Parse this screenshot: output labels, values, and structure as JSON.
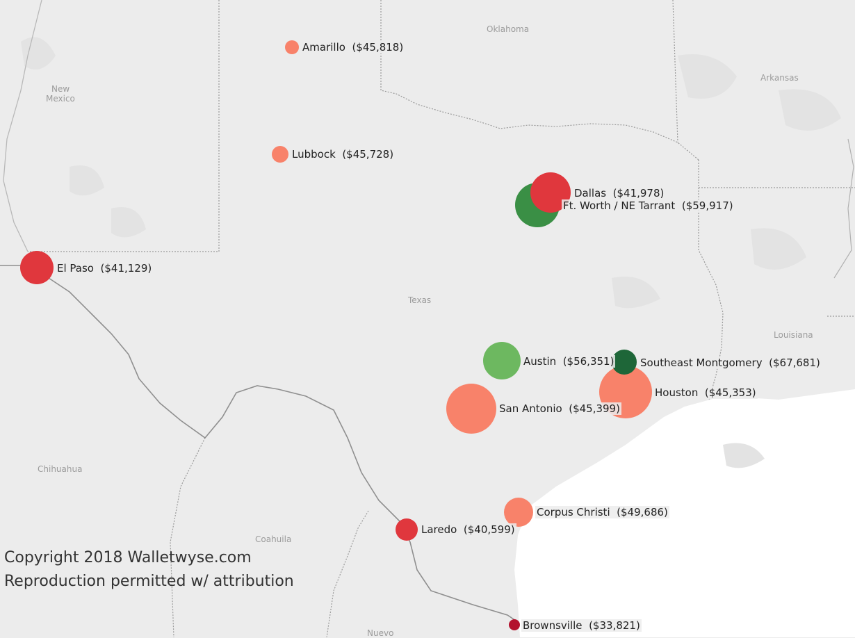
{
  "map": {
    "regions": {
      "oklahoma": "Oklahoma",
      "new_mexico_1": "New",
      "new_mexico_2": "Mexico",
      "arkansas": "Arkansas",
      "texas": "Texas",
      "louisiana": "Louisiana",
      "chihuahua": "Chihuahua",
      "coahuila": "Coahuila",
      "nuevo": "Nuevo"
    },
    "copyright_line1": "Copyright 2018 Walletwyse.com",
    "copyright_line2": "Reproduction permitted w/ attribution",
    "cities": [
      {
        "name": "Amarillo",
        "value": "($45,818)",
        "color": "#f8826a"
      },
      {
        "name": "Lubbock",
        "value": "($45,728)",
        "color": "#f8826a"
      },
      {
        "name": "Dallas",
        "value": "($41,978)",
        "color": "#e0373d"
      },
      {
        "name": "Ft. Worth / NE Tarrant",
        "value": "($59,917)",
        "color": "#3a8f45"
      },
      {
        "name": "El Paso",
        "value": "($41,129)",
        "color": "#e0373d"
      },
      {
        "name": "Austin",
        "value": "($56,351)",
        "color": "#6db860"
      },
      {
        "name": "Southeast Montgomery",
        "value": "($67,681)",
        "color": "#1e6638"
      },
      {
        "name": "Houston",
        "value": "($45,353)",
        "color": "#f8826a"
      },
      {
        "name": "San Antonio",
        "value": "($45,399)",
        "color": "#f8826a"
      },
      {
        "name": "Corpus Christi",
        "value": "($49,686)",
        "color": "#f8826a"
      },
      {
        "name": "Laredo",
        "value": "($40,599)",
        "color": "#e0373d"
      },
      {
        "name": "Brownsville",
        "value": "($33,821)",
        "color": "#b3122e"
      }
    ]
  }
}
